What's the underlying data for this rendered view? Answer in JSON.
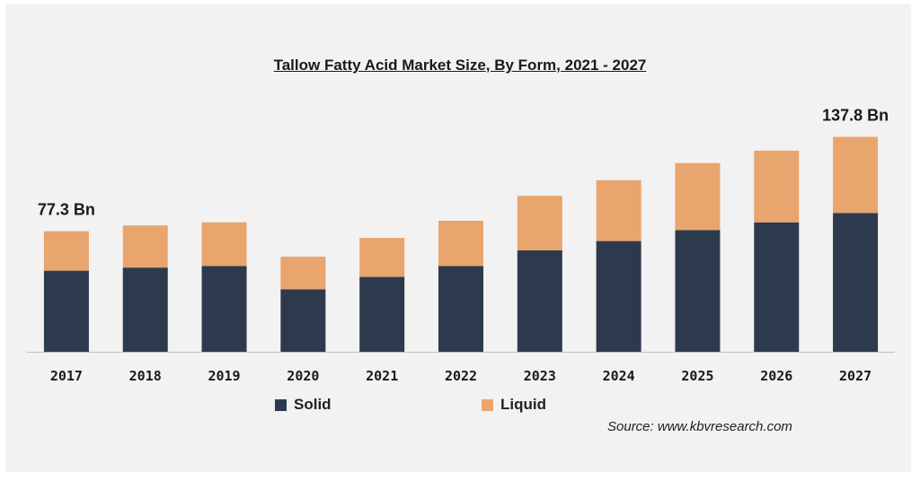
{
  "title": "Tallow Fatty Acid Market Size, By Form, 2021 - 2027",
  "source": "Source: www.kbvresearch.com",
  "colors": {
    "solid": "#2d3a4e",
    "liquid": "#e8a56e",
    "axis": "#bfbfbf",
    "text": "#1a1a1a"
  },
  "chart_data": {
    "type": "bar",
    "stacked": true,
    "title": "Tallow Fatty Acid Market Size, By Form, 2021 - 2027",
    "categories": [
      "2017",
      "2018",
      "2019",
      "2020",
      "2021",
      "2022",
      "2023",
      "2024",
      "2025",
      "2026",
      "2027"
    ],
    "series": [
      {
        "name": "Solid",
        "values": [
          52,
          54,
          55,
          40,
          48,
          55,
          65,
          71,
          78,
          83,
          89
        ]
      },
      {
        "name": "Liquid",
        "values": [
          25.3,
          27,
          28,
          21,
          25,
          29,
          35,
          39,
          43,
          46,
          48.8
        ]
      }
    ],
    "annotations": [
      {
        "category": "2017",
        "text": "77.3 Bn"
      },
      {
        "category": "2027",
        "text": "137.8 Bn"
      }
    ],
    "ylim": [
      0,
      145
    ],
    "grid": false,
    "legend_position": "bottom-center"
  }
}
